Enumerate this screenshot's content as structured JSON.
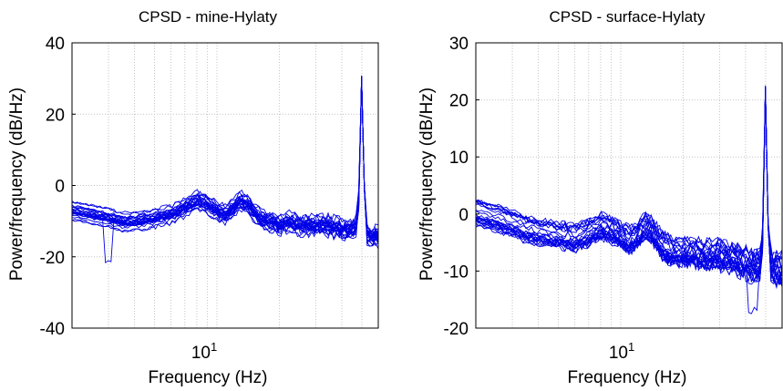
{
  "chart_data": [
    {
      "type": "line",
      "title": "CPSD - mine-Hylaty",
      "xlabel": "Frequency (Hz)",
      "ylabel": "Power/frequency (dB/Hz)",
      "x_scale": "log",
      "xlim": [
        2,
        60
      ],
      "ylim": [
        -40,
        40
      ],
      "yticks": [
        -40,
        -20,
        0,
        20,
        40
      ],
      "xtick_label": {
        "base": "10",
        "exp": "1",
        "value": 10
      },
      "grid": true,
      "color": "#0000e6",
      "series_count": 25,
      "mean_curve": {
        "x": [
          2,
          2.5,
          3,
          3.5,
          4,
          5,
          6,
          7,
          8,
          9,
          10,
          11,
          12,
          13,
          14,
          16,
          18,
          20,
          22,
          25,
          30,
          35,
          40,
          45,
          48,
          49,
          50,
          51,
          52,
          55,
          60
        ],
        "y": [
          -7,
          -8,
          -9,
          -10,
          -10,
          -9,
          -8,
          -6,
          -4,
          -5,
          -7,
          -8,
          -6,
          -4,
          -5,
          -9,
          -10,
          -11,
          -10,
          -11,
          -11,
          -11,
          -12,
          -12,
          -11,
          10,
          34,
          8,
          -13,
          -14,
          -14
        ]
      },
      "spread_db": 2.5,
      "notable": {
        "dip_x": 3,
        "dip_y": -21,
        "peak_x": 50,
        "peak_y": 35
      }
    },
    {
      "type": "line",
      "title": "CPSD - surface-Hylaty",
      "xlabel": "Frequency (Hz)",
      "ylabel": "Power/frequency (dB/Hz)",
      "x_scale": "log",
      "xlim": [
        2,
        60
      ],
      "ylim": [
        -20,
        30
      ],
      "yticks": [
        -20,
        -10,
        0,
        10,
        20,
        30
      ],
      "xtick_label": {
        "base": "10",
        "exp": "1",
        "value": 10
      },
      "grid": true,
      "color": "#0000e6",
      "series_count": 25,
      "mean_curve": {
        "x": [
          2,
          2.5,
          3,
          3.5,
          4,
          5,
          6,
          7,
          8,
          9,
          10,
          11,
          12,
          13,
          14,
          16,
          18,
          20,
          22,
          25,
          30,
          35,
          40,
          45,
          48,
          49,
          50,
          51,
          52,
          55,
          60
        ],
        "y": [
          0,
          -1,
          -2,
          -3,
          -3.5,
          -4,
          -4.5,
          -3.5,
          -2.5,
          -3,
          -4,
          -5,
          -4,
          -2.5,
          -3,
          -6,
          -7,
          -7,
          -7,
          -7.5,
          -7.5,
          -8,
          -9,
          -9.5,
          -9,
          5,
          25,
          3,
          -9,
          -10,
          -10
        ]
      },
      "spread_db": 2.2,
      "notable": {
        "dip_x": 43,
        "dip_y": -17,
        "peak_x": 50,
        "peak_y": 25
      }
    }
  ]
}
